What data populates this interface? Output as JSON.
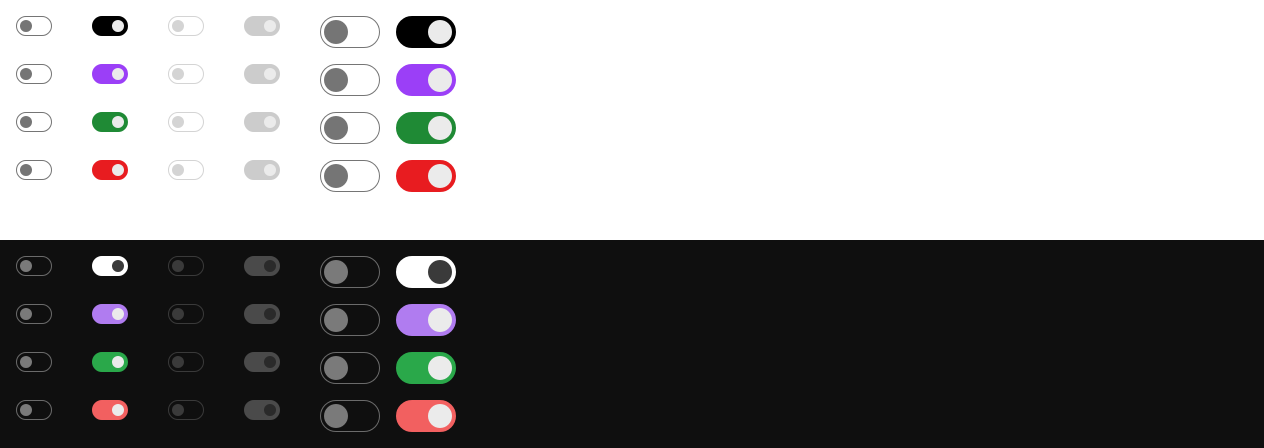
{
  "themes": {
    "light": {
      "background": "#ffffff"
    },
    "dark": {
      "background": "#0f0f0f"
    }
  },
  "rows": [
    {
      "variant": "default",
      "light_on": "#000000",
      "light_knob": "#ebebeb",
      "dark_on": "#ffffff",
      "dark_knob": "#3a3a3a"
    },
    {
      "variant": "purple",
      "light_on": "#9b3ff7",
      "light_knob": "#ebebeb",
      "dark_on": "#b07cf0",
      "dark_knob": "#ebebeb"
    },
    {
      "variant": "green",
      "light_on": "#1f8a35",
      "light_knob": "#ebebeb",
      "dark_on": "#2aa84a",
      "dark_knob": "#ebebeb"
    },
    {
      "variant": "red",
      "light_on": "#e81c20",
      "light_knob": "#ebebeb",
      "dark_on": "#f26060",
      "dark_knob": "#ebebeb"
    }
  ],
  "columns": [
    {
      "size": "small",
      "state": "off",
      "disabled": false
    },
    {
      "size": "small",
      "state": "on",
      "disabled": false
    },
    {
      "size": "small",
      "state": "off",
      "disabled": true
    },
    {
      "size": "small",
      "state": "on",
      "disabled": true
    },
    {
      "size": "large",
      "state": "off",
      "disabled": false
    },
    {
      "size": "large",
      "state": "on",
      "disabled": false
    }
  ]
}
